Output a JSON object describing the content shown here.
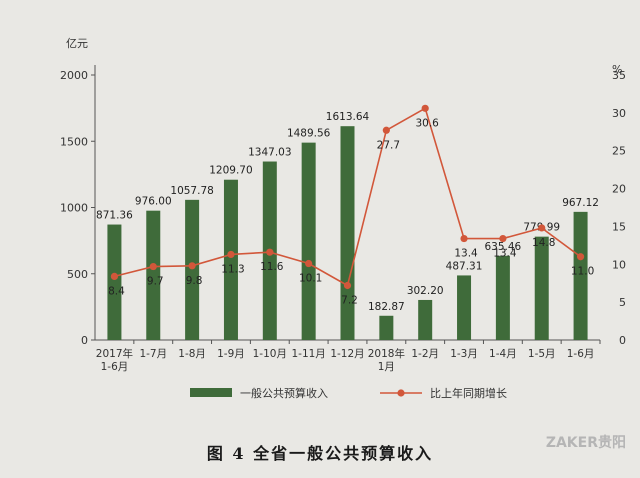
{
  "chart_data": {
    "type": "bar",
    "title": "",
    "categories": [
      "2017年\n1-6月",
      "1-7月",
      "1-8月",
      "1-9月",
      "1-10月",
      "1-11月",
      "1-12月",
      "2018年\n1月",
      "1-2月",
      "1-3月",
      "1-4月",
      "1-5月",
      "1-6月"
    ],
    "series": [
      {
        "name": "一般公共预算收入",
        "type": "bar",
        "axis": "left",
        "color": "#3f6b3a",
        "values": [
          871.36,
          976.0,
          1057.78,
          1209.7,
          1347.03,
          1489.56,
          1613.64,
          182.87,
          302.2,
          487.31,
          635.46,
          779.99,
          967.12
        ],
        "labels": [
          "871.36",
          "976.00",
          "1057.78",
          "1209.70",
          "1347.03",
          "1489.56",
          "1613.64",
          "182.87",
          "302.20",
          "487.31",
          "635.46",
          "779.99",
          "967.12"
        ]
      },
      {
        "name": "比上年同期增长",
        "type": "line",
        "axis": "right",
        "color": "#d2573a",
        "values": [
          8.4,
          9.7,
          9.8,
          11.3,
          11.6,
          10.1,
          7.2,
          27.7,
          30.6,
          13.4,
          13.4,
          14.8,
          11.0
        ],
        "labels": [
          "8.4",
          "9.7",
          "9.8",
          "11.3",
          "11.6",
          "10.1",
          "7.2",
          "27.7",
          "30.6",
          "13.4",
          "13.4",
          "14.8",
          "11.0"
        ]
      }
    ],
    "ylabel": "亿元",
    "ylim": [
      0,
      2000
    ],
    "yticks": [
      "0",
      "500",
      "1000",
      "1500",
      "2000"
    ],
    "y2label": "%",
    "y2lim": [
      0,
      35
    ],
    "y2ticks": [
      "0",
      "5",
      "10",
      "15",
      "20",
      "25",
      "30",
      "35"
    ],
    "grid": false,
    "legend": "bottom"
  },
  "caption": "图 4   全省一般公共预算收入",
  "watermark": "ZAKER贵阳"
}
